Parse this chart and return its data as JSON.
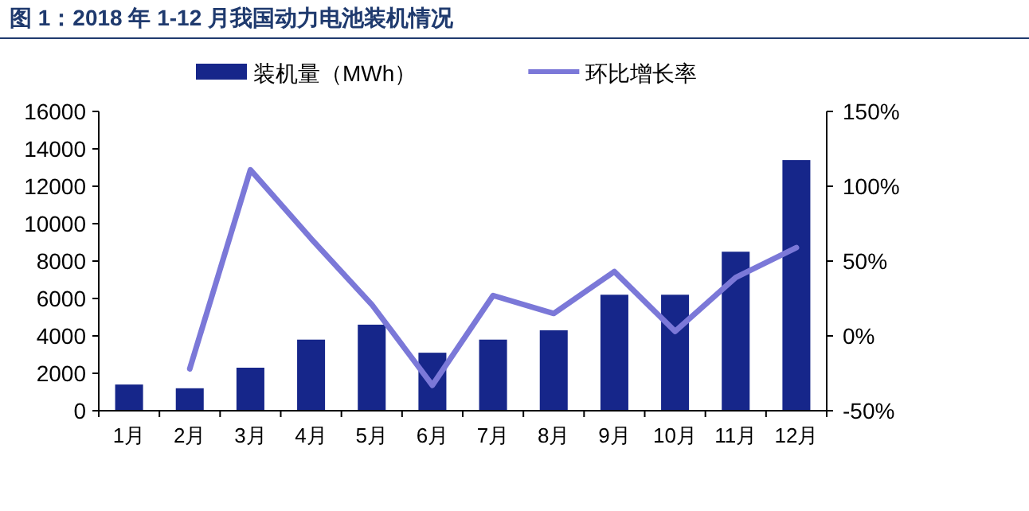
{
  "chart_data": {
    "type": "bar",
    "title": "图 1：2018 年 1-12 月我国动力电池装机情况",
    "categories": [
      "1月",
      "2月",
      "3月",
      "4月",
      "5月",
      "6月",
      "7月",
      "8月",
      "9月",
      "10月",
      "11月",
      "12月"
    ],
    "series": [
      {
        "name": "装机量（MWh）",
        "color": "#16268a",
        "values": [
          1400,
          1200,
          2300,
          3800,
          4600,
          3100,
          3800,
          4300,
          6200,
          6200,
          8500,
          13400
        ]
      },
      {
        "name": "环比增长率",
        "type": "line",
        "axis": "y2",
        "color": "#7b78d8",
        "values": [
          null,
          -22,
          111,
          65,
          21,
          -33,
          27,
          15,
          43,
          3,
          39,
          59
        ]
      }
    ],
    "ylim": [
      0,
      16000
    ],
    "yticks": [
      0,
      2000,
      4000,
      6000,
      8000,
      10000,
      12000,
      14000,
      16000
    ],
    "y2lim": [
      -50,
      150
    ],
    "y2ticks": [
      {
        "value": -50,
        "label": "-50%"
      },
      {
        "value": 0,
        "label": "0%"
      },
      {
        "value": 50,
        "label": "50%"
      },
      {
        "value": 100,
        "label": "100%"
      },
      {
        "value": 150,
        "label": "150%"
      }
    ],
    "legend": "top",
    "grid": false,
    "marker": "none",
    "line_style": "solid"
  }
}
